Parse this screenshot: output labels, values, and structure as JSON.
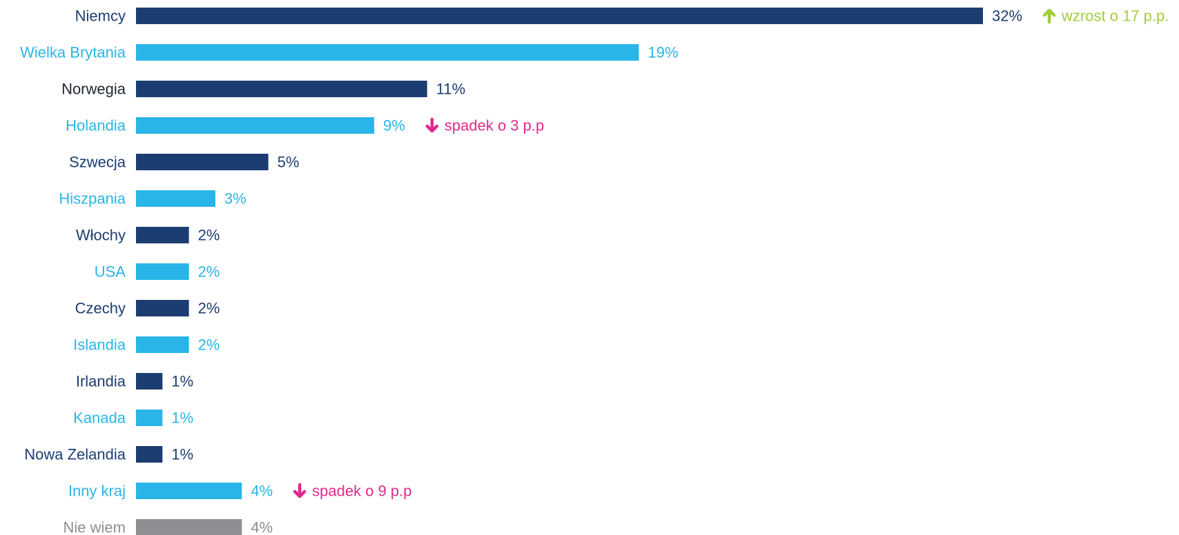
{
  "chart_data": {
    "type": "bar",
    "orientation": "horizontal",
    "title": "",
    "xlabel": "",
    "ylabel": "",
    "xlim": [
      0,
      32
    ],
    "grid": false,
    "categories": [
      "Niemcy",
      "Wielka Brytania",
      "Norwegia",
      "Holandia",
      "Szwecja",
      "Hiszpania",
      "Włochy",
      "USA",
      "Czechy",
      "Islandia",
      "Irlandia",
      "Kanada",
      "Nowa Zelandia",
      "Inny kraj",
      "Nie wiem"
    ],
    "values": [
      32,
      19,
      11,
      9,
      5,
      3,
      2,
      2,
      2,
      2,
      1,
      1,
      1,
      4,
      4
    ],
    "value_labels": [
      "32%",
      "19%",
      "11%",
      "9%",
      "5%",
      "3%",
      "2%",
      "2%",
      "2%",
      "2%",
      "1%",
      "1%",
      "1%",
      "4%",
      "4%"
    ],
    "bar_colors": [
      "#1c3d72",
      "#29b5e8",
      "#1c3d72",
      "#29b5e8",
      "#1c3d72",
      "#29b5e8",
      "#1c3d72",
      "#29b5e8",
      "#1c3d72",
      "#29b5e8",
      "#1c3d72",
      "#29b5e8",
      "#1c3d72",
      "#29b5e8",
      "#8e8e93"
    ],
    "label_colors": [
      "#1c3d72",
      "#29b5e8",
      "#1e2530",
      "#29b5e8",
      "#1c3d72",
      "#29b5e8",
      "#1c3d72",
      "#29b5e8",
      "#1c3d72",
      "#29b5e8",
      "#1c3d72",
      "#29b5e8",
      "#1c3d72",
      "#29b5e8",
      "#8e8e93"
    ],
    "annotations": [
      {
        "category": "Niemcy",
        "text": "wzrost o 17 p.p.",
        "direction": "up",
        "color": "#a3cc3a",
        "icon": "arrow-up-icon"
      },
      {
        "category": "Holandia",
        "text": "spadek o 3 p.p",
        "direction": "down",
        "color": "#e0298c",
        "icon": "arrow-down-icon"
      },
      {
        "category": "Inny kraj",
        "text": "spadek o 9 p.p",
        "direction": "down",
        "color": "#e0298c",
        "icon": "arrow-down-icon"
      }
    ]
  }
}
